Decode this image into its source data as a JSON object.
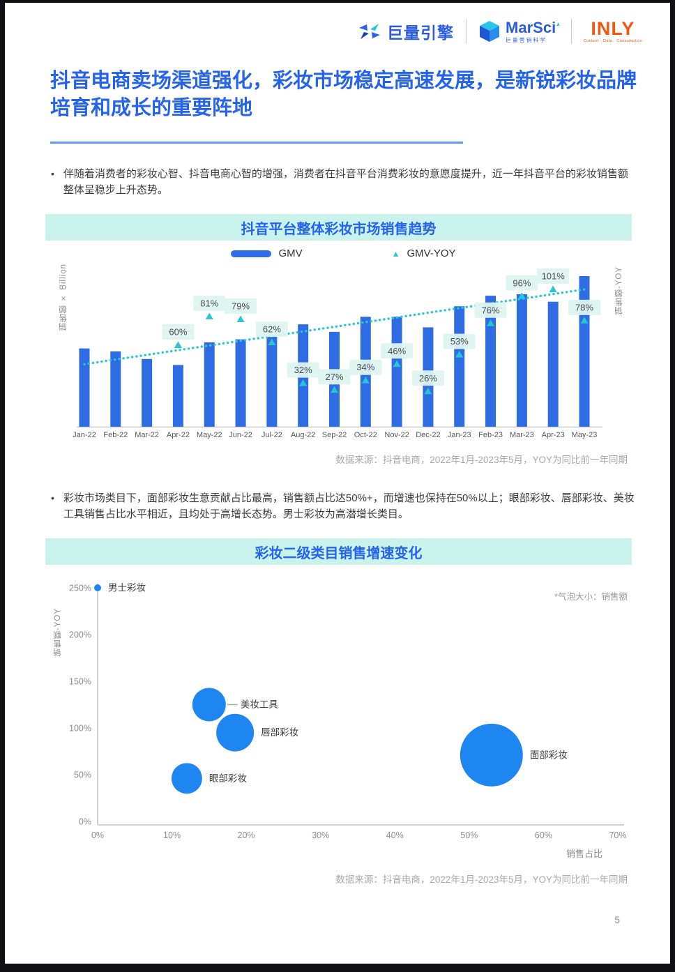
{
  "page_number": "5",
  "header": {
    "logos": [
      {
        "name": "巨量引擎"
      },
      {
        "name": "MarSci",
        "sub": "巨量营销科学"
      },
      {
        "name": "INLY",
        "sub": "Content · Data · Consumption"
      }
    ]
  },
  "title": "抖音电商卖场渠道强化，彩妆市场稳定高速发展，是新锐彩妆品牌培育和成长的重要阵地",
  "bullets": [
    "伴随着消费者的彩妆心智、抖音电商心智的增强，消费者在抖音平台消费彩妆的意愿度提升，近一年抖音平台的彩妆销售额整体呈稳步上升态势。",
    "彩妆市场类目下，面部彩妆生意贡献占比最高，销售额占比达50%+，而增速也保持在50%以上；眼部彩妆、唇部彩妆、美妆工具销售占比水平相近，且均处于高增长态势。男士彩妆为高潜增长类目。"
  ],
  "colors": {
    "accent_blue": "#2563eb",
    "logo_blue": "#2b5cdf",
    "bar_blue": "#2d6ce3",
    "bubble_blue": "#1d86f0",
    "cyan": "#29c5d6",
    "banner_bg": "#c9f2ec",
    "chip_bg": "#dcf4f0",
    "inly_orange": "#f4570f",
    "axis_gray": "#d8d8d8",
    "text_gray": "#595959"
  },
  "chart_data": [
    {
      "type": "bar",
      "title": "抖音平台整体彩妆市场销售趋势",
      "y_axis_left_label": "销售额 × Billion",
      "y_axis_right_label": "销售额-YOY",
      "legend": [
        "GMV",
        "GMV-YOY"
      ],
      "categories": [
        "Jan-22",
        "Feb-22",
        "Mar-22",
        "Apr-22",
        "May-22",
        "Jun-22",
        "Jul-22",
        "Aug-22",
        "Sep-22",
        "Oct-22",
        "Nov-22",
        "Dec-22",
        "Jan-23",
        "Feb-23",
        "Mar-23",
        "Apr-23",
        "May-23"
      ],
      "series": [
        {
          "name": "GMV",
          "type": "bar",
          "axis": "left",
          "note": "left axis has no numeric ticks; values are relative bar heights (May-23 = 100)",
          "values": [
            52,
            50,
            45,
            41,
            56,
            58,
            61,
            68,
            63,
            73,
            73,
            66,
            80,
            87,
            88,
            83,
            100
          ]
        },
        {
          "name": "GMV-YOY",
          "type": "point",
          "axis": "right",
          "unit": "%",
          "values": [
            null,
            null,
            null,
            60,
            81,
            79,
            62,
            32,
            27,
            34,
            46,
            26,
            53,
            76,
            96,
            101,
            78
          ]
        }
      ],
      "trendline": {
        "series": "GMV-YOY",
        "start_pct": 46,
        "end_pct": 101,
        "style": "dotted"
      },
      "source": "数据来源：抖音电商，2022年1月-2023年5月，YOY为同比前一年同期"
    },
    {
      "type": "scatter",
      "subtype": "bubble",
      "title": "彩妆二级类目销售增速变化",
      "note": "*气泡大小：销售额",
      "xlabel": "销售占比",
      "ylabel": "销售额-YOY",
      "x_ticks": [
        "0%",
        "10%",
        "20%",
        "30%",
        "40%",
        "50%",
        "60%",
        "70%"
      ],
      "y_ticks": [
        "0%",
        "50%",
        "100%",
        "150%",
        "200%",
        "250%"
      ],
      "xlim": [
        0,
        70
      ],
      "ylim": [
        0,
        250
      ],
      "points": [
        {
          "label": "男士彩妆",
          "x": 0,
          "y": 250,
          "r": 5,
          "connector": false
        },
        {
          "label": "美妆工具",
          "x": 15,
          "y": 125,
          "r": 24,
          "connector": true
        },
        {
          "label": "唇部彩妆",
          "x": 18.5,
          "y": 95,
          "r": 27,
          "connector": false
        },
        {
          "label": "眼部彩妆",
          "x": 12,
          "y": 46,
          "r": 22,
          "connector": false
        },
        {
          "label": "面部彩妆",
          "x": 53,
          "y": 71,
          "r": 45,
          "connector": false
        }
      ],
      "source": "数据来源：抖音电商，2022年1月-2023年5月，YOY为同比前一年同期"
    }
  ]
}
